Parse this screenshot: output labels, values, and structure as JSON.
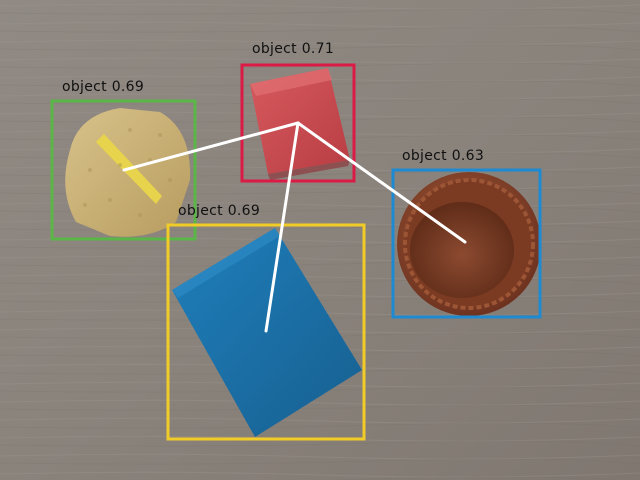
{
  "detections": [
    {
      "label": "object 0.71",
      "class_name": "object",
      "score": 0.71,
      "box_color": "#dc1a46"
    },
    {
      "label": "object 0.69",
      "class_name": "object",
      "score": 0.69,
      "box_color": "#5ab646"
    },
    {
      "label": "object 0.63",
      "class_name": "object",
      "score": 0.63,
      "box_color": "#1e8ad2"
    },
    {
      "label": "object 0.69",
      "class_name": "object",
      "score": 0.69,
      "box_color": "#f2cc26"
    }
  ],
  "connector_color": "#ffffff",
  "scene_objects": [
    {
      "name": "red-cube",
      "color": "#c9474d"
    },
    {
      "name": "yellow-sponge",
      "color": "#c9ae72"
    },
    {
      "name": "brown-cup",
      "color": "#7a3b24"
    },
    {
      "name": "blue-block",
      "color": "#1a70a7"
    }
  ]
}
